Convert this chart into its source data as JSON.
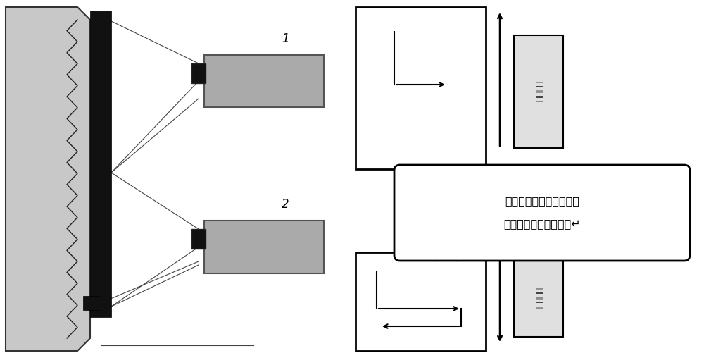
{
  "bg_color": "#ffffff",
  "label1": "1",
  "label2": "2",
  "callout_line1": "第一个上升沿开始计算，",
  "callout_line2": "后面的变化不起作用。↵",
  "vlabel_top": "进展方向",
  "vlabel_bot": "进展方向",
  "plate_color": "#c8c8c8",
  "plate_edge": "#333333",
  "black_bar_color": "#111111",
  "cam_color": "#aaaaaa",
  "cam_edge": "#555555"
}
